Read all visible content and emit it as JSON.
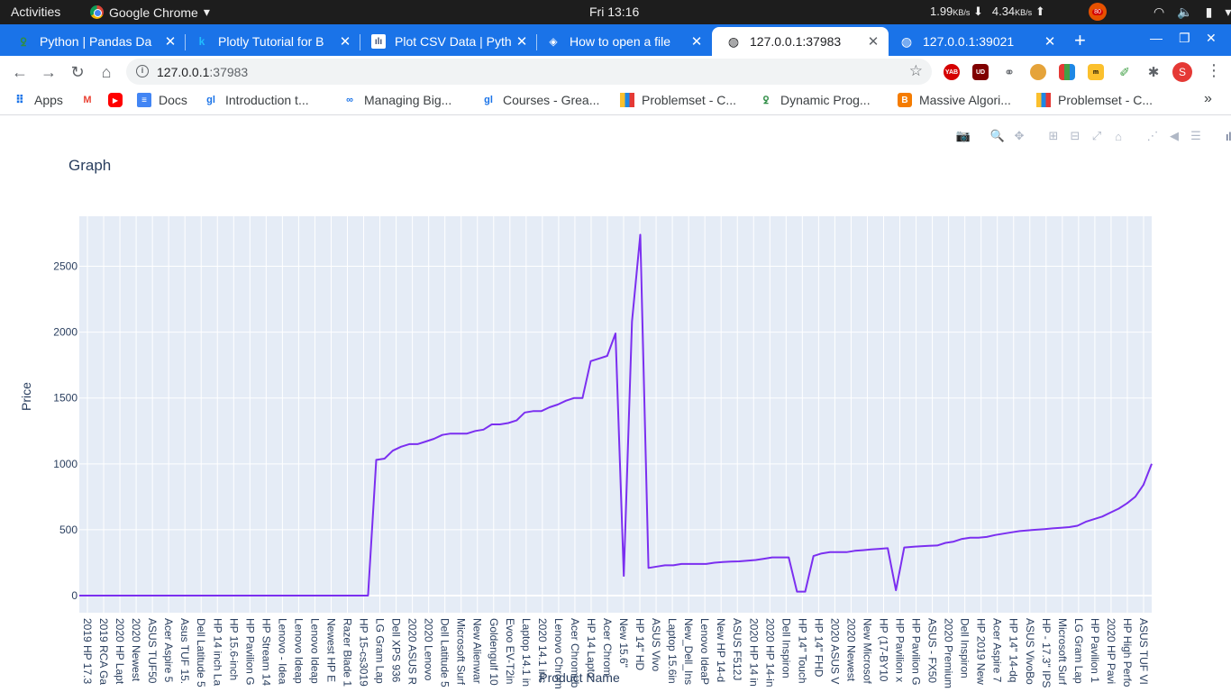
{
  "system_bar": {
    "activities": "Activities",
    "app_name": "Google Chrome",
    "clock": "Fri 13:16",
    "download_rate": "1.99",
    "upload_rate": "4.34",
    "rate_unit": "KB/s",
    "vlc_badge": "80"
  },
  "tabs": [
    {
      "title": "Python | Pandas Da",
      "favicon": "geeksforgeeks-icon",
      "active": false
    },
    {
      "title": "Plotly Tutorial for B",
      "favicon": "k-icon",
      "active": false
    },
    {
      "title": "Plot CSV Data | Pyth",
      "favicon": "plotly-icon",
      "active": false
    },
    {
      "title": "How to open a file",
      "favicon": "diamond-icon",
      "active": false
    },
    {
      "title": "127.0.0.1:37983",
      "favicon": "globe-icon",
      "active": true
    },
    {
      "title": "127.0.0.1:39021",
      "favicon": "globe-icon",
      "active": false
    }
  ],
  "omnibox": {
    "host": "127.0.0.1",
    "port": ":37983"
  },
  "extensions": [
    "YAB",
    "UD"
  ],
  "profile_initial": "S",
  "bookmarks": [
    {
      "label": "Apps",
      "icon": "apps-grid-icon"
    },
    {
      "label": "",
      "icon": "gmail-icon"
    },
    {
      "label": "",
      "icon": "youtube-icon"
    },
    {
      "label": "Docs",
      "icon": "docs-icon"
    },
    {
      "label": "Introduction t...",
      "icon": "greatlearning-icon"
    },
    {
      "label": "Managing Big...",
      "icon": "coursera-icon"
    },
    {
      "label": "Courses - Grea...",
      "icon": "greatlearning-icon"
    },
    {
      "label": "Problemset - C...",
      "icon": "codeforces-icon"
    },
    {
      "label": "Dynamic Prog...",
      "icon": "geeksforgeeks-icon"
    },
    {
      "label": "Massive Algori...",
      "icon": "blogger-icon"
    },
    {
      "label": "Problemset - C...",
      "icon": "codeforces-icon"
    }
  ],
  "chart_data": {
    "type": "line",
    "title": "Graph",
    "xlabel": "Product Name",
    "ylabel": "Price",
    "ylim": [
      -130,
      2880
    ],
    "yticks": [
      0,
      500,
      1000,
      1500,
      2000,
      2500
    ],
    "grid": true,
    "line_color": "#7b2ff0",
    "x_tick_labels": [
      "2019 HP 17.3",
      "2019 RCA Ga",
      "2020 HP Lapt",
      "2020 Newest",
      "ASUS TUF50",
      "Acer Aspire 5",
      "Asus TUF 15.",
      "Dell Latitude 5",
      "HP 14 inch La",
      "HP 15.6-inch",
      "HP Pavilion G",
      "HP Stream 14",
      "Lenovo - Idea",
      "Lenovo Ideap",
      "Lenovo Ideap",
      "Newest HP E",
      "Razer Blade 1",
      "HP 15-cs3019",
      "LG Gram Lap",
      "Dell XPS 936",
      "2020 ASUS R",
      "2020 Lenovo",
      "Dell Latitude 5",
      "Microsoft Surf",
      "New Alienwar",
      "Goldengulf 10",
      "Evoo EV-T2in",
      "Laptop 14.1 in",
      "2020 14.1 inc",
      "Lenovo Chrom",
      "Acer Chromeb",
      "HP 14 Lapto",
      "Acer Chrom",
      "New 15.6\"",
      "HP 14\" HD",
      "ASUS Vivo",
      "Laptop 15.6in",
      "New_Dell_Ins",
      "Lenovo IdeaP",
      "New HP 14-d",
      "ASUS F512J",
      "2020 HP 14 in",
      "2020 HP 14-in",
      "Dell Inspiron",
      "HP 14\" Touch",
      "HP 14\" FHD",
      "2020 ASUS V",
      "2020 Newest",
      "New Microsof",
      "HP (17-BY10",
      "HP Pavilion x",
      "HP Pavilion G",
      "ASUS - FX50",
      "2020 Premium",
      "Dell Inspiron",
      "HP 2019 New",
      "Acer Aspire 7",
      "HP 14\" 14-dq",
      "ASUS VivoBo",
      "HP - 17.3\" IPS",
      "Microsoft Surf",
      "LG Gram Lap",
      "HP Pavilion 1",
      "2020 HP Pavi",
      "HP High Perfo",
      "ASUS TUF VI"
    ],
    "x_index_range": [
      0,
      130
    ],
    "points": [
      [
        0,
        0
      ],
      [
        1,
        0
      ],
      [
        2,
        0
      ],
      [
        3,
        0
      ],
      [
        4,
        0
      ],
      [
        5,
        0
      ],
      [
        6,
        0
      ],
      [
        7,
        0
      ],
      [
        8,
        0
      ],
      [
        9,
        0
      ],
      [
        10,
        0
      ],
      [
        11,
        0
      ],
      [
        12,
        0
      ],
      [
        13,
        0
      ],
      [
        14,
        0
      ],
      [
        15,
        0
      ],
      [
        16,
        0
      ],
      [
        17,
        0
      ],
      [
        18,
        0
      ],
      [
        19,
        0
      ],
      [
        20,
        0
      ],
      [
        21,
        0
      ],
      [
        22,
        0
      ],
      [
        23,
        0
      ],
      [
        24,
        0
      ],
      [
        25,
        0
      ],
      [
        26,
        0
      ],
      [
        27,
        0
      ],
      [
        28,
        0
      ],
      [
        29,
        0
      ],
      [
        30,
        0
      ],
      [
        31,
        0
      ],
      [
        32,
        0
      ],
      [
        33,
        0
      ],
      [
        34,
        0
      ],
      [
        35,
        0
      ],
      [
        36,
        1030
      ],
      [
        37,
        1040
      ],
      [
        38,
        1100
      ],
      [
        39,
        1130
      ],
      [
        40,
        1150
      ],
      [
        41,
        1150
      ],
      [
        42,
        1170
      ],
      [
        43,
        1190
      ],
      [
        44,
        1220
      ],
      [
        45,
        1230
      ],
      [
        46,
        1230
      ],
      [
        47,
        1230
      ],
      [
        48,
        1250
      ],
      [
        49,
        1260
      ],
      [
        50,
        1300
      ],
      [
        51,
        1300
      ],
      [
        52,
        1310
      ],
      [
        53,
        1330
      ],
      [
        54,
        1390
      ],
      [
        55,
        1400
      ],
      [
        56,
        1400
      ],
      [
        57,
        1430
      ],
      [
        58,
        1450
      ],
      [
        59,
        1480
      ],
      [
        60,
        1500
      ],
      [
        61,
        1500
      ],
      [
        62,
        1780
      ],
      [
        63,
        1800
      ],
      [
        64,
        1820
      ],
      [
        65,
        1990
      ],
      [
        66,
        150
      ],
      [
        67,
        2080
      ],
      [
        68,
        2740
      ],
      [
        69,
        210
      ],
      [
        70,
        220
      ],
      [
        71,
        230
      ],
      [
        72,
        230
      ],
      [
        73,
        240
      ],
      [
        74,
        240
      ],
      [
        75,
        240
      ],
      [
        76,
        240
      ],
      [
        77,
        250
      ],
      [
        78,
        255
      ],
      [
        79,
        258
      ],
      [
        80,
        260
      ],
      [
        81,
        265
      ],
      [
        82,
        270
      ],
      [
        83,
        280
      ],
      [
        84,
        290
      ],
      [
        85,
        290
      ],
      [
        86,
        290
      ],
      [
        87,
        30
      ],
      [
        88,
        30
      ],
      [
        89,
        300
      ],
      [
        90,
        320
      ],
      [
        91,
        330
      ],
      [
        92,
        330
      ],
      [
        93,
        330
      ],
      [
        94,
        340
      ],
      [
        95,
        345
      ],
      [
        96,
        350
      ],
      [
        97,
        355
      ],
      [
        98,
        360
      ],
      [
        99,
        40
      ],
      [
        100,
        365
      ],
      [
        101,
        370
      ],
      [
        102,
        375
      ],
      [
        103,
        378
      ],
      [
        104,
        380
      ],
      [
        105,
        400
      ],
      [
        106,
        410
      ],
      [
        107,
        430
      ],
      [
        108,
        440
      ],
      [
        109,
        440
      ],
      [
        110,
        445
      ],
      [
        111,
        460
      ],
      [
        112,
        470
      ],
      [
        113,
        480
      ],
      [
        114,
        490
      ],
      [
        115,
        495
      ],
      [
        116,
        500
      ],
      [
        117,
        505
      ],
      [
        118,
        510
      ],
      [
        119,
        515
      ],
      [
        120,
        520
      ],
      [
        121,
        530
      ],
      [
        122,
        560
      ],
      [
        123,
        580
      ],
      [
        124,
        600
      ],
      [
        125,
        630
      ],
      [
        126,
        660
      ],
      [
        127,
        700
      ],
      [
        128,
        750
      ],
      [
        129,
        840
      ],
      [
        130,
        1000
      ]
    ]
  }
}
